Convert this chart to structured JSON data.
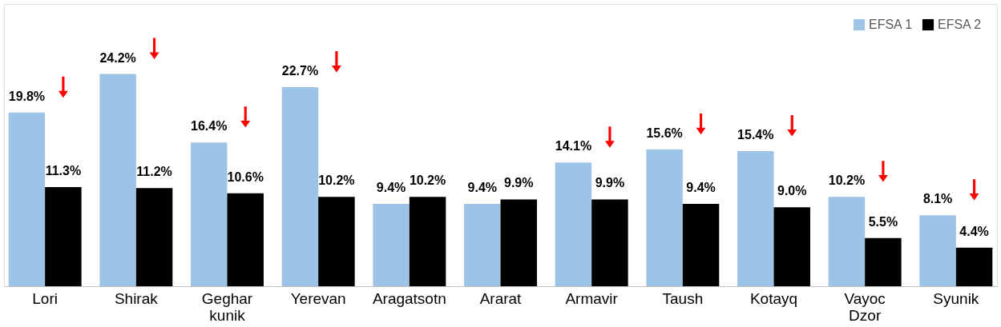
{
  "chart_data": {
    "type": "bar",
    "categories": [
      "Lori",
      "Shirak",
      "Geghar kunik",
      "Yerevan",
      "Aragatsotn",
      "Ararat",
      "Armavir",
      "Taush",
      "Kotayq",
      "Vayoc Dzor",
      "Syunik"
    ],
    "series": [
      {
        "name": "EFSA 1",
        "color": "#9dc3e6",
        "values": [
          19.8,
          24.2,
          16.4,
          22.7,
          9.4,
          9.4,
          14.1,
          15.6,
          15.4,
          10.2,
          8.1
        ],
        "value_labels": [
          "19.8%",
          "24.2%",
          "16.4%",
          "22.7%",
          "9.4%",
          "9.4%",
          "14.1%",
          "15.6%",
          "15.4%",
          "10.2%",
          "8.1%"
        ]
      },
      {
        "name": "EFSA 2",
        "color": "#000000",
        "values": [
          11.3,
          11.2,
          10.6,
          10.2,
          10.2,
          9.9,
          9.9,
          9.4,
          9.0,
          5.5,
          4.4
        ],
        "value_labels": [
          "11.3%",
          "11.2%",
          "10.6%",
          "10.2%",
          "10.2%",
          "9.9%",
          "9.9%",
          "9.4%",
          "9.0%",
          "5.5%",
          "4.4%"
        ]
      }
    ],
    "legend": "top right",
    "grid": false
  }
}
